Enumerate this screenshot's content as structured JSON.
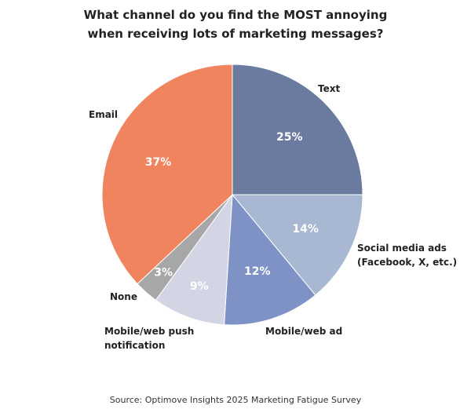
{
  "chart_data": {
    "type": "pie",
    "title": [
      "What channel do you find the MOST annoying",
      "when receiving lots of marketing messages?"
    ],
    "categories": [
      "Text",
      "Social media ads (Facebook, X, etc.)",
      "Mobile/web ad",
      "Mobile/web push notification",
      "None",
      "Email"
    ],
    "values": [
      25,
      14,
      12,
      9,
      3,
      37
    ],
    "value_labels": [
      "25%",
      "14%",
      "12%",
      "9%",
      "3%",
      "37%"
    ],
    "colors": [
      "#6b7a9f",
      "#a9b8d2",
      "#7e92c5",
      "#d3d5e4",
      "#a7a7a7",
      "#f0845f"
    ],
    "source": "Source: Optimove Insights 2025 Marketing Fatigue Survey"
  }
}
